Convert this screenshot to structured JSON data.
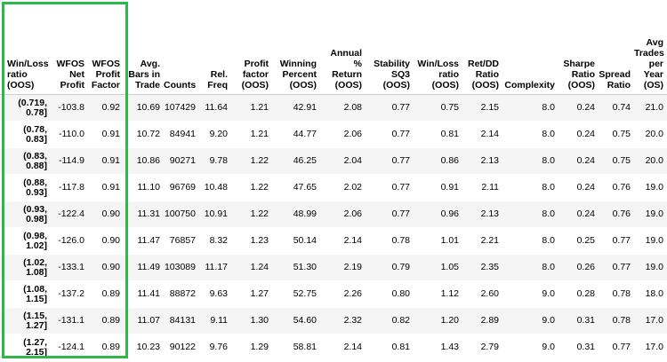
{
  "accent_color": "#2eb84a",
  "table": {
    "index_header": [
      "Win/Loss",
      "ratio",
      "(OOS)"
    ],
    "columns": [
      [
        "WFOS",
        "Net",
        "Profit"
      ],
      [
        "WFOS",
        "Profit",
        "Factor"
      ],
      [
        "Avg.",
        "Bars in",
        "Trade"
      ],
      [
        "Counts"
      ],
      [
        "Rel.",
        "Freq"
      ],
      [
        "Profit",
        "factor",
        "(OOS)"
      ],
      [
        "Winning",
        "Percent",
        "(OOS)"
      ],
      [
        "Annual",
        "%",
        "Return",
        "(OOS)"
      ],
      [
        "Stability",
        "SQ3",
        "(OOS)"
      ],
      [
        "Win/Loss",
        "ratio",
        "(OOS)"
      ],
      [
        "Ret/DD",
        "Ratio",
        "(OOS)"
      ],
      [
        "Complexity"
      ],
      [
        "Sharpe",
        "Ratio",
        "(OOS)"
      ],
      [
        "Spread",
        "Ratio"
      ],
      [
        "Avg",
        "Trades",
        "per Year",
        "(OS)"
      ]
    ],
    "rows": [
      {
        "index": [
          "(0.719,",
          "0.78]"
        ],
        "values": [
          "-103.8",
          "0.92",
          "10.69",
          "107429",
          "11.64",
          "1.21",
          "42.91",
          "2.08",
          "0.77",
          "0.75",
          "2.15",
          "8.0",
          "0.24",
          "0.74",
          "21.0"
        ]
      },
      {
        "index": [
          "(0.78,",
          "0.83]"
        ],
        "values": [
          "-110.0",
          "0.91",
          "10.72",
          "84941",
          "9.20",
          "1.21",
          "44.77",
          "2.06",
          "0.77",
          "0.81",
          "2.14",
          "8.0",
          "0.24",
          "0.75",
          "20.0"
        ]
      },
      {
        "index": [
          "(0.83,",
          "0.88]"
        ],
        "values": [
          "-114.9",
          "0.91",
          "10.86",
          "90271",
          "9.78",
          "1.22",
          "46.25",
          "2.04",
          "0.77",
          "0.86",
          "2.13",
          "8.0",
          "0.24",
          "0.75",
          "20.0"
        ]
      },
      {
        "index": [
          "(0.88,",
          "0.93]"
        ],
        "values": [
          "-117.8",
          "0.91",
          "11.10",
          "96769",
          "10.48",
          "1.22",
          "47.65",
          "2.02",
          "0.77",
          "0.91",
          "2.11",
          "8.0",
          "0.24",
          "0.76",
          "19.0"
        ]
      },
      {
        "index": [
          "(0.93,",
          "0.98]"
        ],
        "values": [
          "-122.4",
          "0.90",
          "11.31",
          "100750",
          "10.91",
          "1.22",
          "48.99",
          "2.06",
          "0.77",
          "0.96",
          "2.13",
          "8.0",
          "0.24",
          "0.76",
          "19.0"
        ]
      },
      {
        "index": [
          "(0.98,",
          "1.02]"
        ],
        "values": [
          "-126.0",
          "0.90",
          "11.47",
          "76857",
          "8.32",
          "1.23",
          "50.14",
          "2.14",
          "0.78",
          "1.01",
          "2.21",
          "8.0",
          "0.25",
          "0.77",
          "19.0"
        ]
      },
      {
        "index": [
          "(1.02,",
          "1.08]"
        ],
        "values": [
          "-133.1",
          "0.90",
          "11.49",
          "103089",
          "11.17",
          "1.24",
          "51.30",
          "2.19",
          "0.79",
          "1.05",
          "2.35",
          "8.0",
          "0.26",
          "0.77",
          "19.0"
        ]
      },
      {
        "index": [
          "(1.08,",
          "1.15]"
        ],
        "values": [
          "-137.2",
          "0.89",
          "11.41",
          "88872",
          "9.63",
          "1.27",
          "52.75",
          "2.26",
          "0.80",
          "1.12",
          "2.60",
          "9.0",
          "0.28",
          "0.78",
          "18.0"
        ]
      },
      {
        "index": [
          "(1.15,",
          "1.27]"
        ],
        "values": [
          "-131.1",
          "0.89",
          "11.07",
          "84131",
          "9.11",
          "1.30",
          "54.60",
          "2.32",
          "0.82",
          "1.20",
          "2.89",
          "9.0",
          "0.31",
          "0.78",
          "17.0"
        ]
      },
      {
        "index": [
          "(1.27,",
          "2.15]"
        ],
        "values": [
          "-124.1",
          "0.89",
          "10.23",
          "90122",
          "9.76",
          "1.29",
          "58.81",
          "2.14",
          "0.81",
          "1.43",
          "2.79",
          "9.0",
          "0.31",
          "0.77",
          "17.0"
        ]
      }
    ]
  }
}
